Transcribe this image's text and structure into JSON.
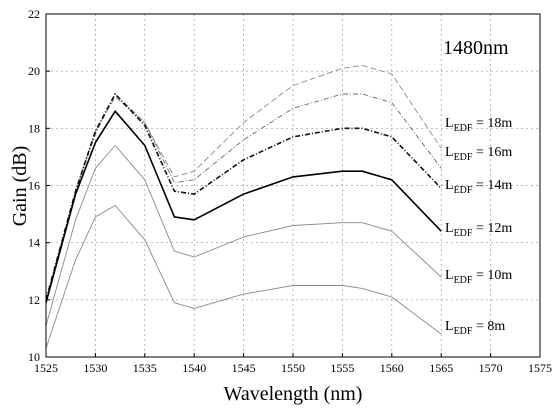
{
  "chart_data": {
    "type": "line",
    "title": "",
    "annotation": "1480nm",
    "xlabel": "Wavelength (nm)",
    "ylabel": "Gain (dB)",
    "xlim": [
      1525,
      1575
    ],
    "ylim": [
      10,
      22
    ],
    "xticks": [
      "1525",
      "1530",
      "1535",
      "1540",
      "1545",
      "1550",
      "1555",
      "1560",
      "1565",
      "1570",
      "1575"
    ],
    "yticks": [
      "10",
      "12",
      "14",
      "16",
      "18",
      "20",
      "22"
    ],
    "grid": true,
    "series": [
      {
        "name_main": "L",
        "name_sub": "EDF",
        "name_tail": " = 18m",
        "color": "#8a8a8a",
        "dash": "6 3",
        "width": 0.9,
        "x": [
          1525,
          1528,
          1530,
          1532,
          1535,
          1538,
          1540,
          1545,
          1550,
          1555,
          1557,
          1560,
          1565
        ],
        "y": [
          12.0,
          15.8,
          17.9,
          19.1,
          18.2,
          16.3,
          16.5,
          18.2,
          19.5,
          20.1,
          20.2,
          19.9,
          17.3
        ]
      },
      {
        "name_main": "L",
        "name_sub": "EDF",
        "name_tail": " = 16m",
        "color": "#6a6a6a",
        "dash": "5 2 1 2",
        "width": 0.9,
        "x": [
          1525,
          1528,
          1530,
          1532,
          1535,
          1538,
          1540,
          1545,
          1550,
          1555,
          1557,
          1560,
          1565
        ],
        "y": [
          12.0,
          15.8,
          17.8,
          19.2,
          18.2,
          16.1,
          16.2,
          17.6,
          18.7,
          19.2,
          19.2,
          18.9,
          16.6
        ]
      },
      {
        "name_main": "L",
        "name_sub": "EDF",
        "name_tail": " = 14m",
        "color": "#111111",
        "dash": "5 2 1 2",
        "width": 1.6,
        "x": [
          1525,
          1528,
          1530,
          1532,
          1535,
          1538,
          1540,
          1545,
          1550,
          1555,
          1557,
          1560,
          1565
        ],
        "y": [
          12.0,
          15.8,
          17.9,
          19.2,
          18.1,
          15.8,
          15.7,
          16.9,
          17.7,
          18.0,
          18.0,
          17.7,
          15.9
        ]
      },
      {
        "name_main": "L",
        "name_sub": "EDF",
        "name_tail": " = 12m",
        "color": "#000000",
        "dash": "",
        "width": 1.6,
        "x": [
          1525,
          1528,
          1530,
          1532,
          1535,
          1538,
          1540,
          1545,
          1550,
          1555,
          1557,
          1560,
          1565
        ],
        "y": [
          11.9,
          15.7,
          17.5,
          18.6,
          17.4,
          14.9,
          14.8,
          15.7,
          16.3,
          16.5,
          16.5,
          16.2,
          14.4
        ]
      },
      {
        "name_main": "L",
        "name_sub": "EDF",
        "name_tail": " = 10m",
        "color": "#8a8a8a",
        "dash": "",
        "width": 0.9,
        "x": [
          1525,
          1528,
          1530,
          1532,
          1535,
          1538,
          1540,
          1545,
          1550,
          1555,
          1557,
          1560,
          1565
        ],
        "y": [
          11.1,
          14.8,
          16.6,
          17.4,
          16.2,
          13.7,
          13.5,
          14.2,
          14.6,
          14.7,
          14.7,
          14.4,
          12.8
        ]
      },
      {
        "name_main": "L",
        "name_sub": "EDF",
        "name_tail": " = 8m",
        "color": "#8a8a8a",
        "dash": "",
        "width": 0.9,
        "x": [
          1525,
          1528,
          1530,
          1532,
          1535,
          1538,
          1540,
          1545,
          1550,
          1555,
          1557,
          1560,
          1565
        ],
        "y": [
          10.3,
          13.4,
          14.9,
          15.3,
          14.1,
          11.9,
          11.7,
          12.2,
          12.5,
          12.5,
          12.4,
          12.1,
          10.8
        ]
      }
    ]
  }
}
